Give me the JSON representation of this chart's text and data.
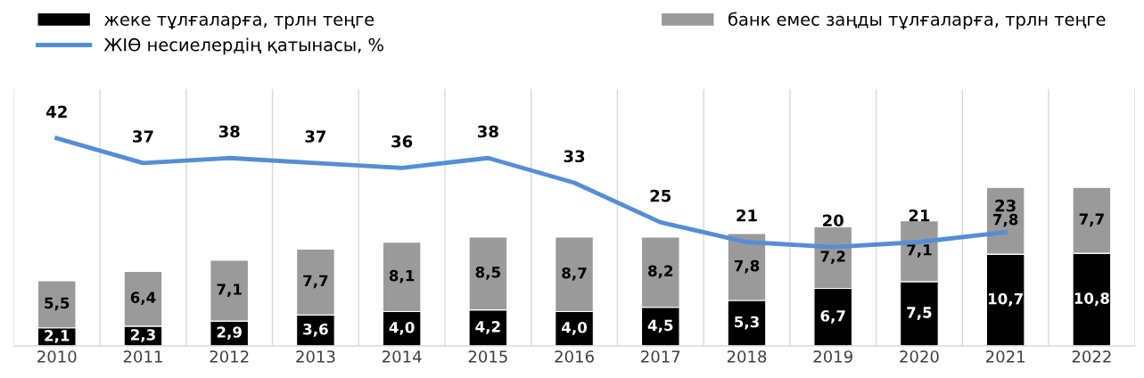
{
  "chart_data": {
    "type": "bar",
    "stacked": true,
    "categories": [
      "2010",
      "2011",
      "2012",
      "2013",
      "2014",
      "2015",
      "2016",
      "2017",
      "2018",
      "2019",
      "2020",
      "2021",
      "2022"
    ],
    "series": [
      {
        "name": "жеке тұлғаларға, трлн теңге",
        "color": "#000000",
        "values": [
          2.1,
          2.3,
          2.9,
          3.6,
          4.0,
          4.2,
          4.0,
          4.5,
          5.3,
          6.7,
          7.5,
          10.7,
          10.8
        ],
        "value_labels": [
          "2,1",
          "2,3",
          "2,9",
          "3,6",
          "4,0",
          "4,2",
          "4,0",
          "4,5",
          "5,3",
          "6,7",
          "7,5",
          "10,7",
          "10,8"
        ]
      },
      {
        "name": "банк емес заңды тұлғаларға, трлн теңге",
        "color": "#9a9a9a",
        "values": [
          5.5,
          6.4,
          7.1,
          7.7,
          8.1,
          8.5,
          8.7,
          8.2,
          7.8,
          7.2,
          7.1,
          7.8,
          7.7
        ],
        "value_labels": [
          "5,5",
          "6,4",
          "7,1",
          "7,7",
          "8,1",
          "8,5",
          "8,7",
          "8,2",
          "7,8",
          "7,2",
          "7,1",
          "7,8",
          "7,7"
        ]
      },
      {
        "name": "ЖІӨ несиелердің қатынасы, %",
        "type": "line",
        "axis": "y2",
        "color": "#558ed5",
        "values": [
          42,
          37,
          38,
          37,
          36,
          38,
          33,
          25,
          21,
          20,
          21,
          23,
          null
        ],
        "value_labels": [
          "42",
          "37",
          "38",
          "37",
          "36",
          "38",
          "33",
          "25",
          "21",
          "20",
          "21",
          "23",
          null
        ]
      }
    ],
    "ylim": [
      0,
      30
    ],
    "y2lim": [
      0,
      52
    ],
    "tick_labels": "x",
    "grid": "x",
    "legend": "top",
    "line_style": "solid"
  }
}
